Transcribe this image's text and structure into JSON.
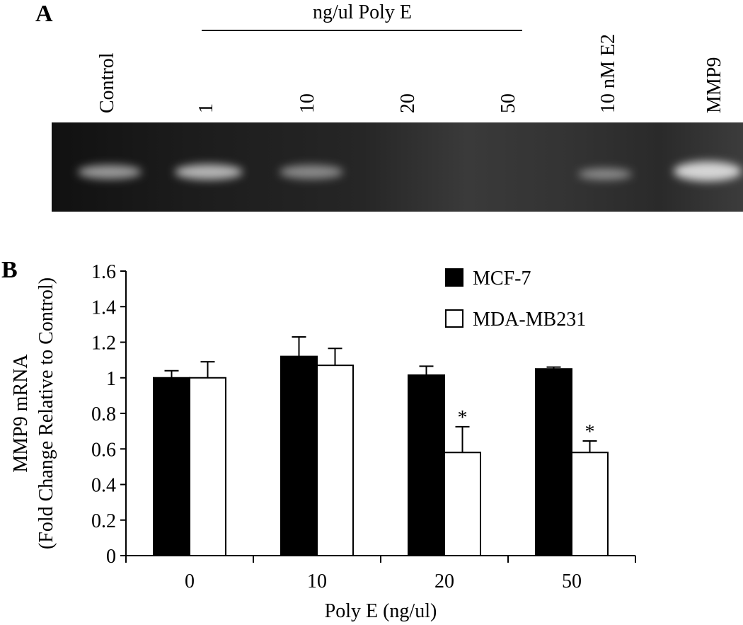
{
  "panel_a": {
    "label": "A",
    "group_label": "ng/ul Poly E",
    "lanes": [
      "Control",
      "1",
      "10",
      "20",
      "50",
      "10 nM E2",
      "MMP9"
    ]
  },
  "chart_data": {
    "type": "bar",
    "panel_label": "B",
    "y_label": [
      "MMP9 mRNA",
      "(Fold Change Relative to Control)"
    ],
    "x_label": "Poly E (ng/ul)",
    "categories": [
      "0",
      "10",
      "20",
      "50"
    ],
    "series": [
      {
        "name": "MCF-7",
        "color": "#000000",
        "values": [
          1.0,
          1.12,
          1.015,
          1.05
        ],
        "errors": [
          0.04,
          0.11,
          0.05,
          0.01
        ],
        "annotations": [
          null,
          null,
          null,
          null
        ]
      },
      {
        "name": "MDA-MB231",
        "color": "#ffffff",
        "values": [
          1.0,
          1.07,
          0.58,
          0.58
        ],
        "errors": [
          0.09,
          0.095,
          0.145,
          0.065
        ],
        "annotations": [
          null,
          null,
          "*",
          "*"
        ]
      }
    ],
    "ylim": [
      0,
      1.6
    ],
    "yticks": [
      0,
      0.2,
      0.4,
      0.6,
      0.8,
      1,
      1.2,
      1.4,
      1.6
    ],
    "legend": "top-right"
  }
}
